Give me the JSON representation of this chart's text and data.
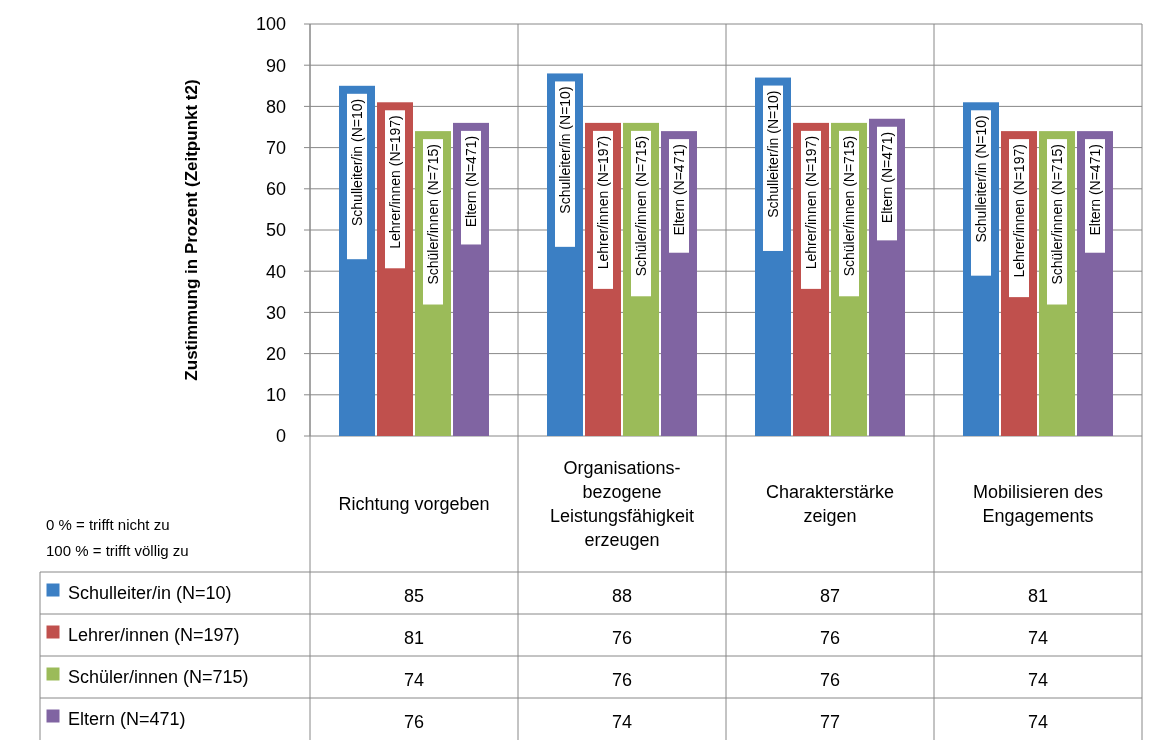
{
  "chart_data": {
    "type": "bar",
    "ylabel": "Zustimmung in Prozent (Zeitpunkt  t2)",
    "categories": [
      "Richtung vorgeben",
      "Organisations-bezogene Leistungsfähigkeit erzeugen",
      "Charakterstärke zeigen",
      "Mobilisieren des Engagements"
    ],
    "series": [
      {
        "name": "Schulleiter/in (N=10)",
        "color": "#3b7fc4",
        "values": [
          85,
          88,
          87,
          81
        ]
      },
      {
        "name": "Lehrer/innen (N=197)",
        "color": "#c0504d",
        "values": [
          81,
          76,
          76,
          74
        ]
      },
      {
        "name": "Schüler/innen (N=715)",
        "color": "#9bbb59",
        "values": [
          74,
          76,
          76,
          74
        ]
      },
      {
        "name": "Eltern (N=471)",
        "color": "#8064a2",
        "values": [
          76,
          74,
          77,
          74
        ]
      }
    ],
    "ylim": [
      0,
      100
    ],
    "yticks": [
      0,
      10,
      20,
      30,
      40,
      50,
      60,
      70,
      80,
      90,
      100
    ],
    "grid": "y",
    "legend": "bottom",
    "data_labels": true,
    "annotations": [
      "0 % = trifft nicht zu",
      "100 % = trifft völlig zu"
    ]
  }
}
